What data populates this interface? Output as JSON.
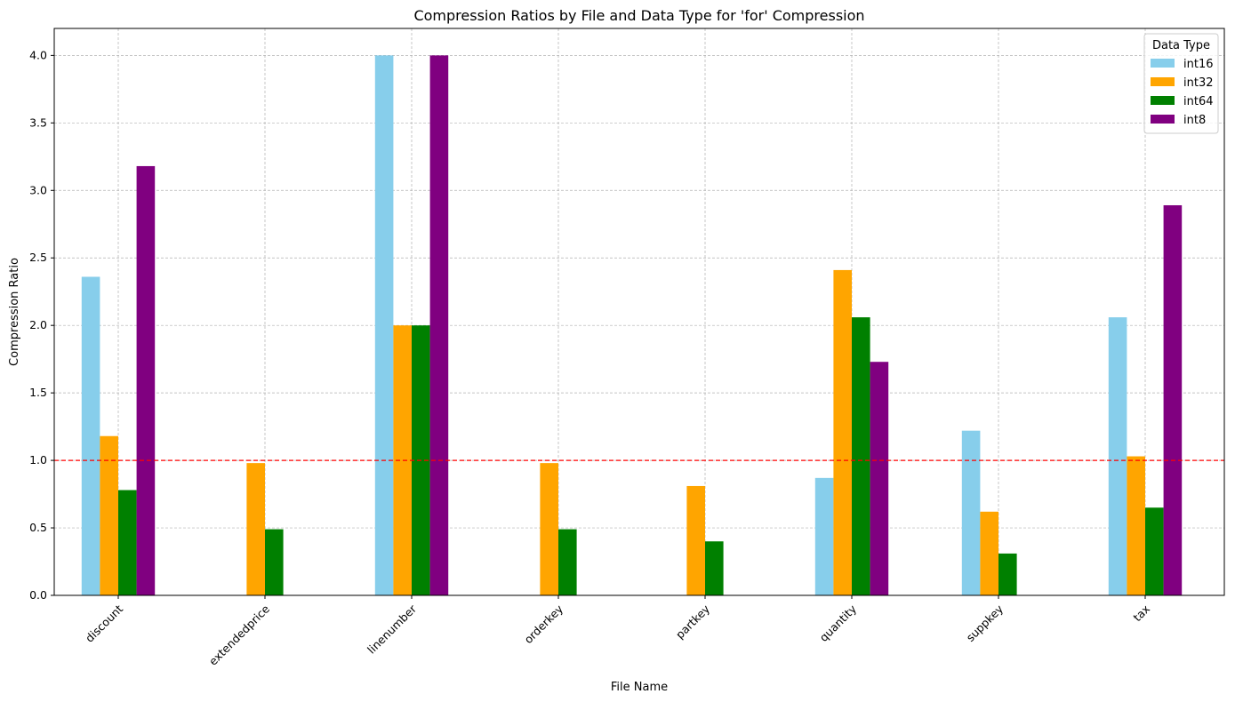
{
  "chart_data": {
    "type": "bar",
    "title": "Compression Ratios by File and Data Type for 'for' Compression",
    "xlabel": "File Name",
    "ylabel": "Compression Ratio",
    "ylim": [
      0,
      4.2
    ],
    "yticks": [
      "0.0",
      "0.5",
      "1.0",
      "1.5",
      "2.0",
      "2.5",
      "3.0",
      "3.5",
      "4.0"
    ],
    "categories": [
      "discount",
      "extendedprice",
      "linenumber",
      "orderkey",
      "partkey",
      "quantity",
      "suppkey",
      "tax"
    ],
    "series": [
      {
        "name": "int16",
        "color": "#87ceeb",
        "values": [
          2.36,
          null,
          4.0,
          null,
          null,
          0.87,
          1.22,
          2.06
        ]
      },
      {
        "name": "int32",
        "color": "#ffa500",
        "values": [
          1.18,
          0.98,
          2.0,
          0.98,
          0.81,
          2.41,
          0.62,
          1.03
        ]
      },
      {
        "name": "int64",
        "color": "#008000",
        "values": [
          0.78,
          0.49,
          2.0,
          0.49,
          0.4,
          2.06,
          0.31,
          0.65
        ]
      },
      {
        "name": "int8",
        "color": "#800080",
        "values": [
          3.18,
          null,
          4.0,
          null,
          null,
          1.73,
          null,
          2.89
        ]
      }
    ],
    "reference_line": {
      "value": 1.0,
      "color": "#ff0000",
      "style": "dashed"
    },
    "legend": {
      "title": "Data Type",
      "placement": "top-right"
    },
    "grid": true
  }
}
